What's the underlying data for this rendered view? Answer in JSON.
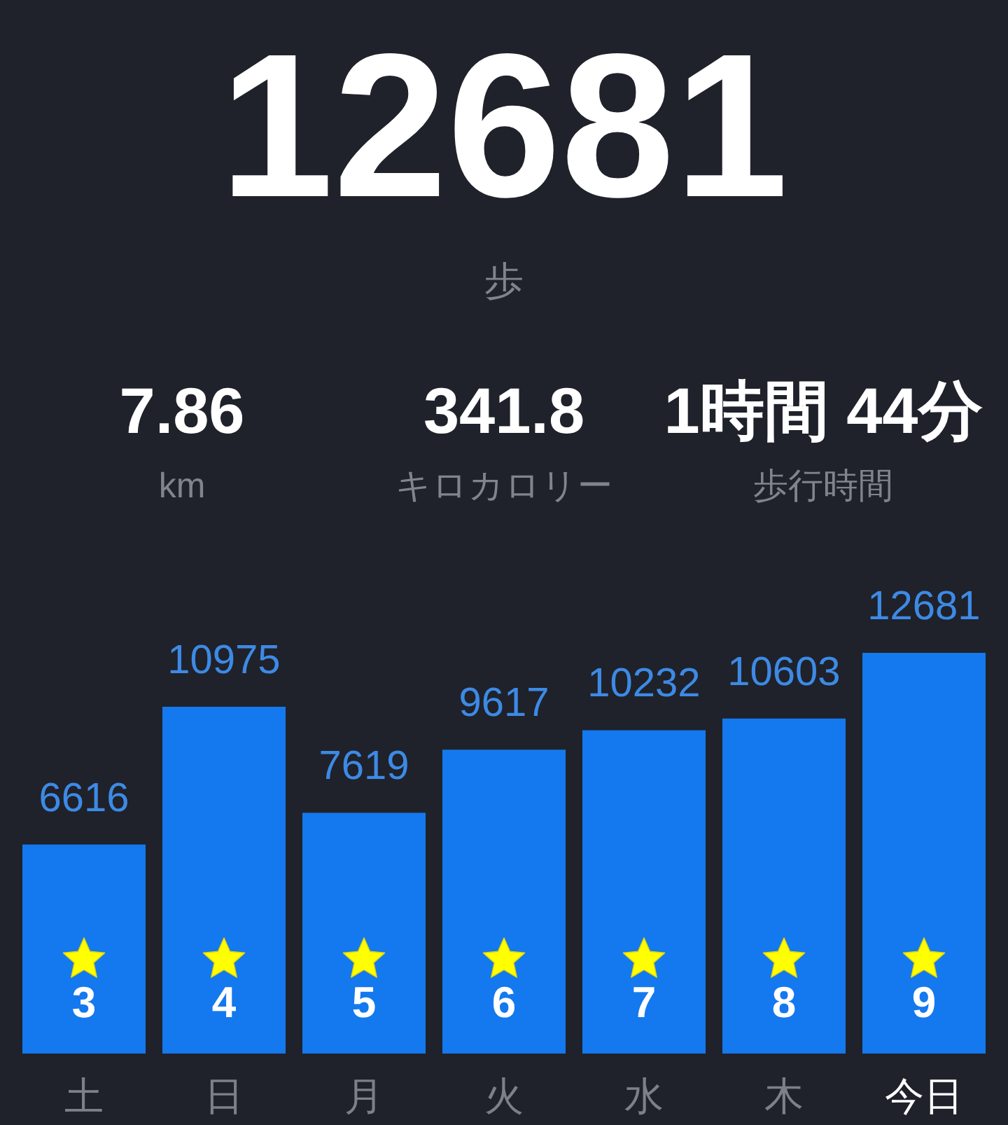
{
  "chart_data": {
    "type": "bar",
    "title": "12681",
    "subtitle": "歩",
    "categories": [
      "土",
      "日",
      "月",
      "火",
      "水",
      "木",
      "今日"
    ],
    "values": [
      6616,
      10975,
      7619,
      9617,
      10232,
      10603,
      12681
    ],
    "color": "#1479ee",
    "data_labels": true,
    "annotations": [
      "7.86",
      "km",
      "341.8",
      "キロカロリー",
      "1時間 44分",
      "歩行時間",
      "3",
      "4",
      "5",
      "6",
      "7",
      "8",
      "9"
    ]
  }
}
